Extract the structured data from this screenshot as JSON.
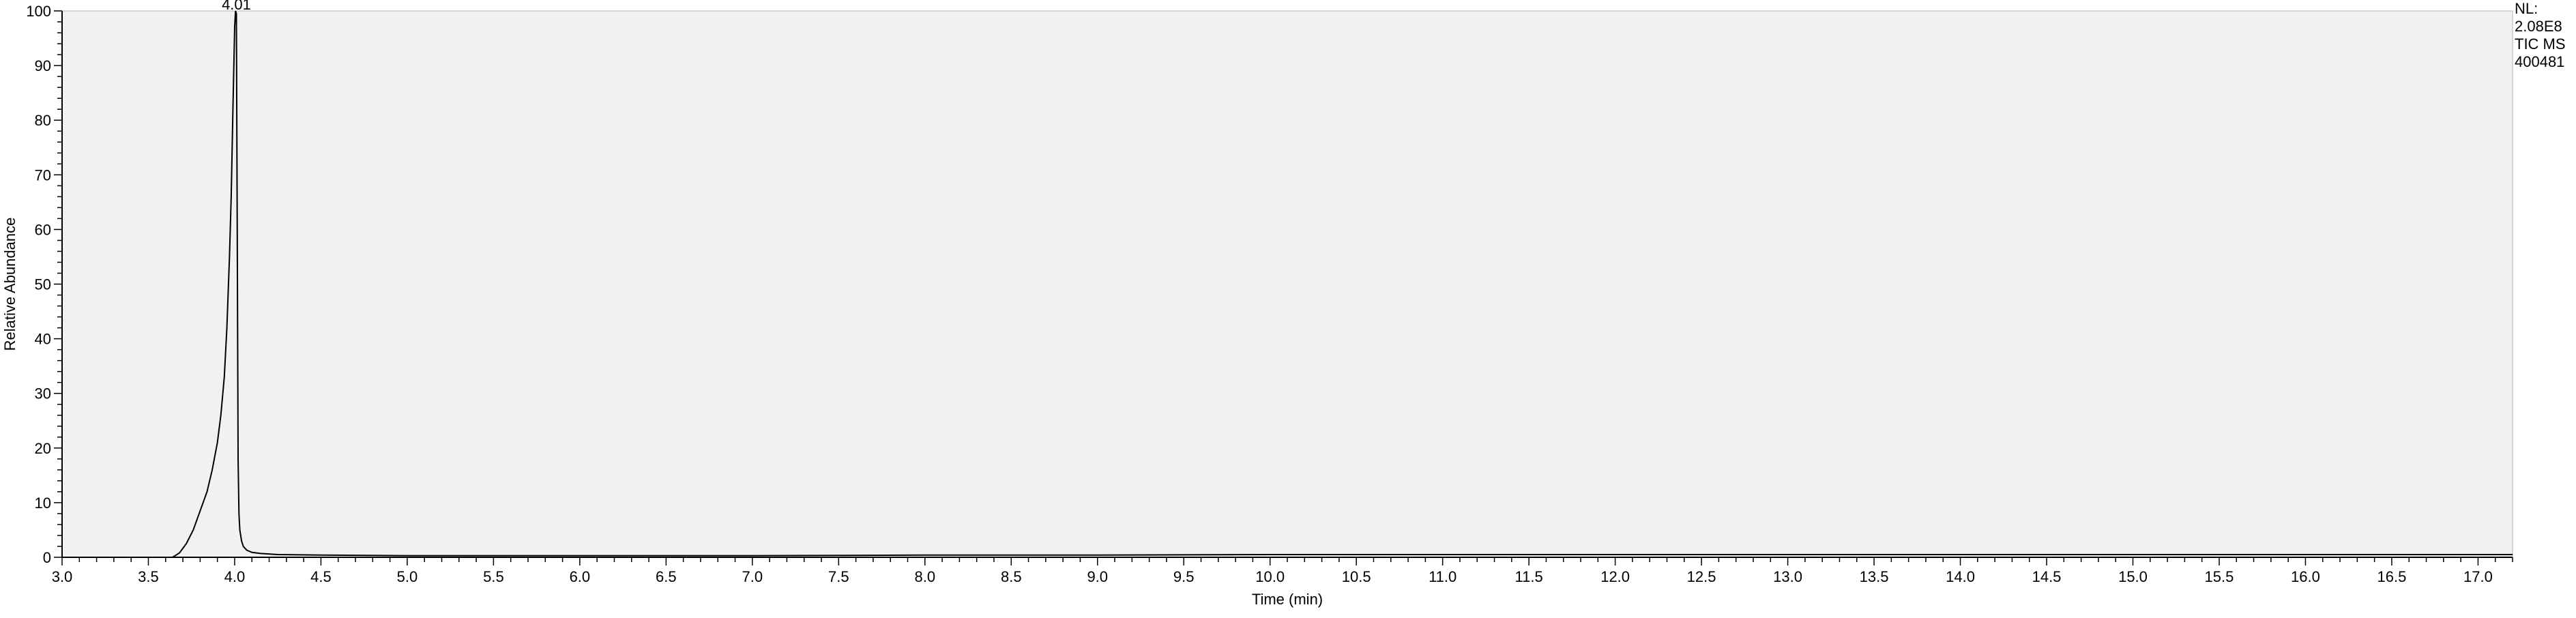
{
  "chart_data": {
    "type": "line",
    "title": "",
    "xlabel": "Time (min)",
    "ylabel": "Relative Abundance",
    "xlim": [
      3.0,
      17.2
    ],
    "ylim": [
      0,
      100
    ],
    "x_major_ticks": [
      "3.0",
      "3.5",
      "4.0",
      "4.5",
      "5.0",
      "5.5",
      "6.0",
      "6.5",
      "7.0",
      "7.5",
      "8.0",
      "8.5",
      "9.0",
      "9.5",
      "10.0",
      "10.5",
      "11.0",
      "11.5",
      "12.0",
      "12.5",
      "13.0",
      "13.5",
      "14.0",
      "14.5",
      "15.0",
      "15.5",
      "16.0",
      "16.5",
      "17.0"
    ],
    "y_major_ticks": [
      "0",
      "10",
      "20",
      "30",
      "40",
      "50",
      "60",
      "70",
      "80",
      "90",
      "100"
    ],
    "grid": false,
    "plot_background": "#f1f1f1",
    "line_color": "#000000",
    "peak_annotations": [
      {
        "x": 4.01,
        "label": "4.01"
      }
    ],
    "info_panel": [
      "NL:",
      "2.08E8",
      "TIC  MS",
      "400481"
    ],
    "series": [
      {
        "x": [
          3.0,
          3.5,
          3.64,
          3.68,
          3.72,
          3.76,
          3.8,
          3.84,
          3.87,
          3.9,
          3.92,
          3.94,
          3.955,
          3.97,
          3.98,
          3.99,
          4.0,
          4.005,
          4.01,
          4.015,
          4.02,
          4.025,
          4.03,
          4.04,
          4.05,
          4.07,
          4.1,
          4.15,
          4.25,
          4.5,
          5.0,
          6.0,
          7.0,
          8.0,
          9.0,
          10.0,
          11.0,
          12.0,
          13.0,
          14.0,
          15.0,
          16.0,
          17.0,
          17.2
        ],
        "y": [
          0,
          0,
          0,
          0.8,
          2.5,
          5,
          8.5,
          12,
          16,
          21,
          26,
          33,
          42,
          55,
          66,
          82,
          97,
          100,
          99.5,
          60,
          18,
          8,
          5,
          3,
          2,
          1.3,
          0.9,
          0.7,
          0.5,
          0.4,
          0.3,
          0.3,
          0.3,
          0.4,
          0.4,
          0.5,
          0.5,
          0.5,
          0.5,
          0.5,
          0.5,
          0.5,
          0.5,
          0.5
        ]
      }
    ]
  }
}
